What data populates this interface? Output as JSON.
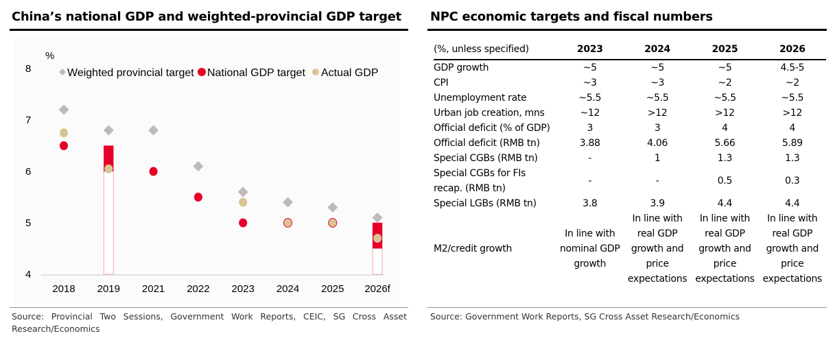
{
  "left_panel": {
    "title": "China’s national GDP and weighted-provincial GDP target",
    "source": "Source: Provincial Two Sessions, Government Work Reports, CEIC, SG Cross Asset Research/Economics"
  },
  "right_panel": {
    "title": "NPC economic targets and fiscal numbers",
    "source": "Source: Government Work Reports, SG Cross Asset Research/Economics",
    "table": {
      "header": [
        "(%, unless specified)",
        "2023",
        "2024",
        "2025",
        "2026"
      ],
      "rows": [
        [
          "GDP growth",
          "~5",
          "~5",
          "~5",
          "4.5-5"
        ],
        [
          "CPI",
          "~3",
          "~3",
          "~2",
          "~2"
        ],
        [
          "Unemployment rate",
          "~5.5",
          "~5.5",
          "~5.5",
          "~5.5"
        ],
        [
          "Urban job creation, mns",
          "~12",
          ">12",
          ">12",
          ">12"
        ],
        [
          "Official deficit (% of GDP)",
          "3",
          "3",
          "4",
          "4"
        ],
        [
          "Official deficit (RMB tn)",
          "3.88",
          "4.06",
          "5.66",
          "5.89"
        ],
        [
          "Special CGBs (RMB tn)",
          "-",
          "1",
          "1.3",
          "1.3"
        ],
        [
          "Special CGBs for FIs recap. (RMB tn)",
          "-",
          "-",
          "0.5",
          "0.3"
        ],
        [
          "Special LGBs (RMB tn)",
          "3.8",
          "3.9",
          "4.4",
          "4.4"
        ],
        [
          "M2/credit growth",
          "In line with nominal GDP growth",
          "In line with real GDP growth and price expectations",
          "In line with real GDP growth and price expectations",
          "In line with real GDP growth and price expectations"
        ]
      ]
    }
  },
  "chart_data": {
    "type": "scatter",
    "title": "China’s national GDP and weighted-provincial GDP target",
    "ylabel": "%",
    "xlabel": "",
    "ylim": [
      4,
      8
    ],
    "yticks": [
      4,
      5,
      6,
      7,
      8
    ],
    "grid": false,
    "legend_position": "top",
    "categories": [
      "2018",
      "2019",
      "2021",
      "2022",
      "2023",
      "2024",
      "2025",
      "2026f"
    ],
    "series": [
      {
        "name": "Weighted provincial target",
        "marker": "diamond",
        "color": "#c0b9b9",
        "values": [
          7.2,
          6.8,
          6.8,
          6.1,
          5.6,
          5.4,
          5.3,
          5.1
        ]
      },
      {
        "name": "National GDP target",
        "marker": "circle",
        "color": "#e60028",
        "values": [
          6.5,
          null,
          6.0,
          5.5,
          5.0,
          5.0,
          5.0,
          null
        ]
      },
      {
        "name": "Actual GDP",
        "marker": "circle",
        "color": "#d8c594",
        "values": [
          6.75,
          6.05,
          null,
          null,
          5.4,
          5.0,
          5.0,
          4.7
        ]
      }
    ],
    "target_ranges": [
      {
        "category": "2019",
        "low": 6.0,
        "high": 6.5,
        "color": "#e60028"
      },
      {
        "category": "2026f",
        "low": 4.5,
        "high": 5.0,
        "color": "#e60028"
      }
    ]
  }
}
